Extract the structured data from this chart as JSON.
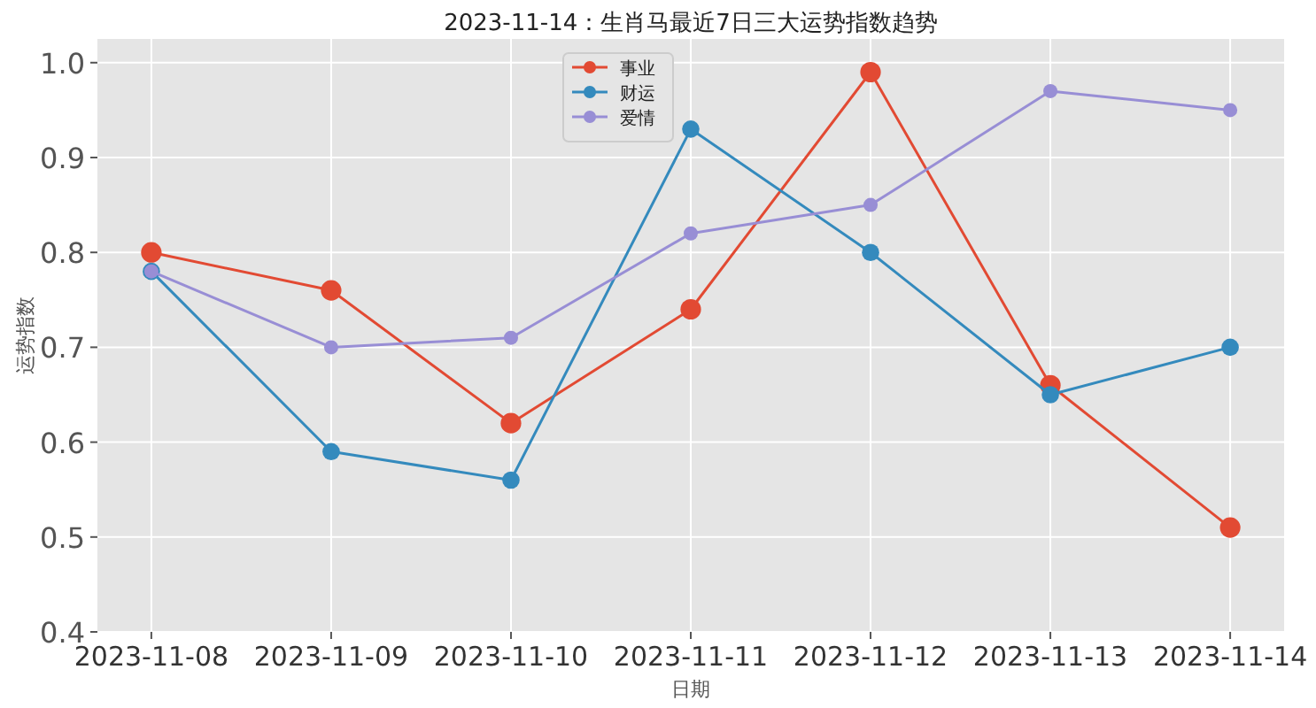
{
  "chart_data": {
    "type": "line",
    "title": "2023-11-14：生肖马最近7日三大运势指数趋势",
    "xlabel": "日期",
    "ylabel": "运势指数",
    "x": [
      "2023-11-08",
      "2023-11-09",
      "2023-11-10",
      "2023-11-11",
      "2023-11-12",
      "2023-11-13",
      "2023-11-14"
    ],
    "series": [
      {
        "name": "事业",
        "color": "#e24a33",
        "values": [
          0.8,
          0.76,
          0.62,
          0.74,
          0.99,
          0.66,
          0.51
        ]
      },
      {
        "name": "财运",
        "color": "#348abd",
        "values": [
          0.78,
          0.59,
          0.56,
          0.93,
          0.8,
          0.65,
          0.7
        ]
      },
      {
        "name": "爱情",
        "color": "#988ed5",
        "values": [
          0.78,
          0.7,
          0.71,
          0.82,
          0.85,
          0.97,
          0.95
        ]
      }
    ],
    "xlim": [
      "2023-11-07T16:48",
      "2023-11-14T07:12"
    ],
    "ylim": [
      0.4,
      1.025
    ],
    "xticks": [
      "2023-11-08",
      "2023-11-09",
      "2023-11-10",
      "2023-11-11",
      "2023-11-12",
      "2023-11-13",
      "2023-11-14"
    ],
    "yticks": [
      0.4,
      0.5,
      0.6,
      0.7,
      0.8,
      0.9,
      {
        "value": 1.0,
        "label": "1.0"
      }
    ],
    "grid": true,
    "legend": "top",
    "marker": "circle",
    "line_style": "solid"
  }
}
